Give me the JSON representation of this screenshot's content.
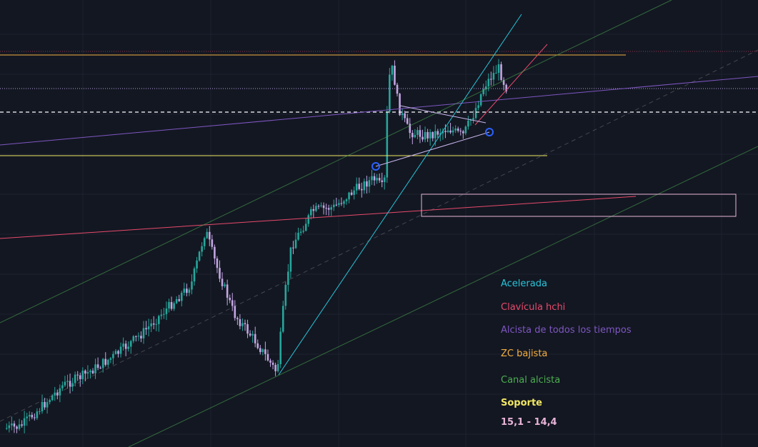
{
  "chart_data": {
    "type": "candlestick",
    "colors": {
      "background": "#131722",
      "grid": "#1e222d",
      "up_candle": "#26a69a",
      "down_candle": "#c3a6e3",
      "acelerada": "#26c6da",
      "clavicula": "#e84a6b",
      "alcista_todos": "#7e57c2",
      "zc_bajista": "#f5b041",
      "canal_alcista": "#4caf50",
      "soporte": "#f2e863",
      "zone_box": "#e8b4d8",
      "triangle": "#c9b6ec",
      "anchor_circle": "#2962ff",
      "dashed_level": "#ffffff",
      "dotted_level": "#b39ddb"
    },
    "legend": [
      {
        "key": "acelerada",
        "label": "Acelerada",
        "color": "#26c6da",
        "bold": false
      },
      {
        "key": "clavicula",
        "label": "Clavícula hchi",
        "color": "#e84a6b",
        "bold": false
      },
      {
        "key": "alcista_todos",
        "label": "Alcista de todos los tiempos",
        "color": "#7e57c2",
        "bold": false
      },
      {
        "key": "zc_bajista",
        "label": "ZC bajista",
        "color": "#f5b041",
        "bold": false
      },
      {
        "key": "canal_alcista",
        "label": "Canal alcista",
        "color": "#4caf50",
        "bold": false
      },
      {
        "key": "soporte",
        "label": "Soporte",
        "color": "#f2e863",
        "bold": true
      },
      {
        "key": "soporte_range",
        "label": "15,1 - 14,4",
        "color": "#e8b4d8",
        "bold": true
      }
    ]
  }
}
